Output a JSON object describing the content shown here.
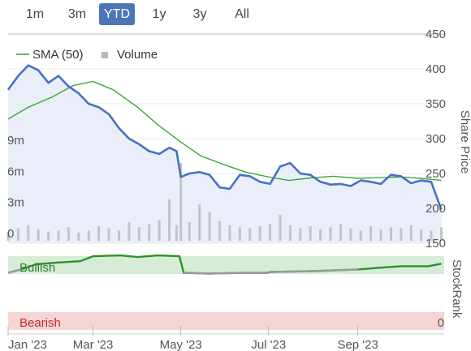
{
  "range_buttons": [
    "1m",
    "3m",
    "YTD",
    "1y",
    "3y",
    "All"
  ],
  "active_range": "YTD",
  "colors": {
    "price_line": "#4472c4",
    "sma_line": "#3aa83a",
    "volume_bars": "#c4c4c4",
    "bullish_zone": "#d7ecd7",
    "bearish_zone": "#f6d5d5",
    "stockrank_line": "#2f8f2f",
    "stockrank_grey": "#9a9a9a",
    "active_button": "#4a76b8"
  },
  "chart_data": {
    "type": "line",
    "x_range": [
      "2023-01-01",
      "2023-10-31"
    ],
    "x_ticks": [
      "Jan '23",
      "Mar '23",
      "May '23",
      "Jul '23",
      "Sep '23"
    ],
    "x_tick_dates": [
      "2023-01-01",
      "2023-03-01",
      "2023-05-01",
      "2023-07-01",
      "2023-09-01"
    ],
    "y_price": {
      "label": "Share Price",
      "ticks": [
        150,
        200,
        250,
        300,
        350,
        400,
        450
      ],
      "range": [
        150,
        450
      ]
    },
    "y_volume": {
      "ticks": [
        "0",
        "3m",
        "6m",
        "9m"
      ],
      "tick_values": [
        0,
        3,
        6,
        9
      ],
      "unit": "m"
    },
    "legend": [
      {
        "name": "SMA (50)",
        "symbol": "line"
      },
      {
        "name": "Volume",
        "symbol": "square"
      }
    ],
    "series": [
      {
        "name": "Price",
        "x": [
          "2023-01-01",
          "2023-01-08",
          "2023-01-15",
          "2023-01-22",
          "2023-01-29",
          "2023-02-05",
          "2023-02-12",
          "2023-02-19",
          "2023-02-26",
          "2023-03-05",
          "2023-03-12",
          "2023-03-19",
          "2023-03-26",
          "2023-04-02",
          "2023-04-09",
          "2023-04-16",
          "2023-04-23",
          "2023-04-28",
          "2023-05-01",
          "2023-05-07",
          "2023-05-14",
          "2023-05-21",
          "2023-05-28",
          "2023-06-04",
          "2023-06-11",
          "2023-06-18",
          "2023-06-25",
          "2023-07-02",
          "2023-07-09",
          "2023-07-16",
          "2023-07-23",
          "2023-07-30",
          "2023-08-06",
          "2023-08-13",
          "2023-08-20",
          "2023-08-27",
          "2023-09-03",
          "2023-09-10",
          "2023-09-17",
          "2023-09-24",
          "2023-10-01",
          "2023-10-08",
          "2023-10-15",
          "2023-10-22",
          "2023-10-29"
        ],
        "values": [
          370,
          390,
          405,
          398,
          380,
          390,
          375,
          365,
          350,
          345,
          335,
          315,
          300,
          292,
          282,
          278,
          287,
          282,
          245,
          250,
          252,
          248,
          230,
          228,
          248,
          246,
          238,
          235,
          260,
          265,
          250,
          248,
          238,
          234,
          235,
          232,
          240,
          238,
          235,
          248,
          246,
          236,
          240,
          238,
          198
        ]
      },
      {
        "name": "SMA (50)",
        "x": [
          "2023-01-01",
          "2023-01-15",
          "2023-02-01",
          "2023-02-15",
          "2023-03-01",
          "2023-03-15",
          "2023-04-01",
          "2023-04-15",
          "2023-05-01",
          "2023-05-15",
          "2023-06-01",
          "2023-06-15",
          "2023-07-01",
          "2023-07-15",
          "2023-08-01",
          "2023-08-15",
          "2023-09-01",
          "2023-09-15",
          "2023-10-01",
          "2023-10-15",
          "2023-10-29"
        ],
        "values": [
          328,
          345,
          360,
          376,
          382,
          370,
          345,
          320,
          295,
          275,
          262,
          252,
          245,
          240,
          244,
          246,
          243,
          244,
          245,
          243,
          240
        ]
      },
      {
        "name": "Volume",
        "x": [
          "2023-01-01",
          "2023-01-08",
          "2023-01-15",
          "2023-01-22",
          "2023-01-29",
          "2023-02-05",
          "2023-02-12",
          "2023-02-19",
          "2023-02-26",
          "2023-03-05",
          "2023-03-12",
          "2023-03-19",
          "2023-03-26",
          "2023-04-02",
          "2023-04-09",
          "2023-04-16",
          "2023-04-23",
          "2023-04-28",
          "2023-05-01",
          "2023-05-07",
          "2023-05-14",
          "2023-05-21",
          "2023-05-28",
          "2023-06-04",
          "2023-06-11",
          "2023-06-18",
          "2023-06-25",
          "2023-07-02",
          "2023-07-09",
          "2023-07-16",
          "2023-07-23",
          "2023-07-30",
          "2023-08-06",
          "2023-08-13",
          "2023-08-20",
          "2023-08-27",
          "2023-09-03",
          "2023-09-10",
          "2023-09-17",
          "2023-09-24",
          "2023-10-01",
          "2023-10-08",
          "2023-10-15",
          "2023-10-22",
          "2023-10-29"
        ],
        "values": [
          0.8,
          1.2,
          1.5,
          1.1,
          0.9,
          1.0,
          1.3,
          0.8,
          1.0,
          1.4,
          1.2,
          1.0,
          1.8,
          1.3,
          1.6,
          2.0,
          4.0,
          1.5,
          7.5,
          1.8,
          3.5,
          2.8,
          1.9,
          1.5,
          1.3,
          1.2,
          1.4,
          1.6,
          2.5,
          1.5,
          1.2,
          1.4,
          1.1,
          1.3,
          1.6,
          1.2,
          1.0,
          1.4,
          1.1,
          1.3,
          1.2,
          1.5,
          1.1,
          1.0,
          1.3
        ]
      }
    ],
    "stockrank": {
      "label": "StockRank",
      "zones": [
        "Bullish",
        "Bearish"
      ],
      "tick_label": "0",
      "x": [
        "2023-01-01",
        "2023-01-10",
        "2023-01-20",
        "2023-02-01",
        "2023-02-20",
        "2023-03-01",
        "2023-03-20",
        "2023-04-01",
        "2023-04-15",
        "2023-04-30",
        "2023-05-03",
        "2023-05-20",
        "2023-06-15",
        "2023-06-30",
        "2023-07-02",
        "2023-08-01",
        "2023-09-01",
        "2023-09-15",
        "2023-10-01",
        "2023-10-20",
        "2023-10-29"
      ],
      "values": [
        74,
        78,
        84,
        86,
        88,
        94,
        95,
        93,
        95,
        94,
        74,
        73,
        74,
        74,
        75,
        76,
        78,
        80,
        82,
        82,
        85
      ],
      "bullish_from": 79
    }
  }
}
